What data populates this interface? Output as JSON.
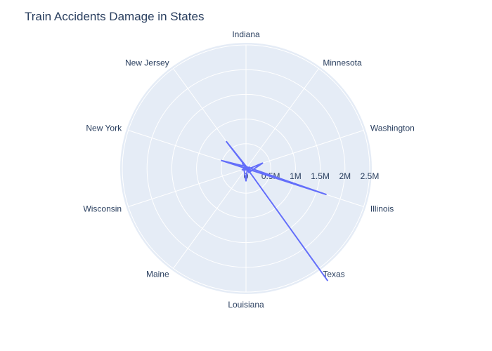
{
  "chart_data": {
    "type": "polar-line",
    "title": "Train Accidents Damage in States",
    "categories": [
      "Indiana",
      "Minnesota",
      "Washington",
      "Illinois",
      "Texas",
      "Louisiana",
      "Maine",
      "Wisconsin",
      "New York",
      "New Jersey"
    ],
    "radial_ticks": [
      "0",
      "0.5M",
      "1M",
      "1.5M",
      "2M",
      "2.5M"
    ],
    "radial_range": [
      0,
      2500000
    ],
    "angular_direction": "clockwise",
    "rotation_deg": 90,
    "grid": true,
    "line_color": "#636efa",
    "series": [
      {
        "points": [
          {
            "state": "Illinois",
            "value": 0
          },
          {
            "state": "Illinois",
            "value": 40000
          },
          {
            "state": "Washington",
            "value": 350000
          },
          {
            "state": "Texas",
            "value": 100000
          },
          {
            "state": "Illinois",
            "value": 30000
          },
          {
            "state": "New Jersey",
            "value": 120000
          },
          {
            "state": "Illinois",
            "value": 20000
          },
          {
            "state": "Texas",
            "value": 40000
          },
          {
            "state": "Louisiana",
            "value": 250000
          },
          {
            "state": "New York",
            "value": 50000
          },
          {
            "state": "Texas",
            "value": 20000
          },
          {
            "state": "New Jersey",
            "value": 60000
          },
          {
            "state": "Illinois",
            "value": 1700000
          },
          {
            "state": "New York",
            "value": 10000
          },
          {
            "state": "Washington",
            "value": 80000
          },
          {
            "state": "Maine",
            "value": 20000
          },
          {
            "state": "Illinois",
            "value": 50000
          },
          {
            "state": "Minnesota",
            "value": 40000
          },
          {
            "state": "New York",
            "value": 520000
          },
          {
            "state": "Illinois",
            "value": 100000
          },
          {
            "state": "Wisconsin",
            "value": 80000
          },
          {
            "state": "Minnesota",
            "value": 30000
          },
          {
            "state": "New Jersey",
            "value": 670000
          },
          {
            "state": "Illinois",
            "value": 30000
          },
          {
            "state": "Texas",
            "value": 2810000
          }
        ]
      }
    ]
  }
}
